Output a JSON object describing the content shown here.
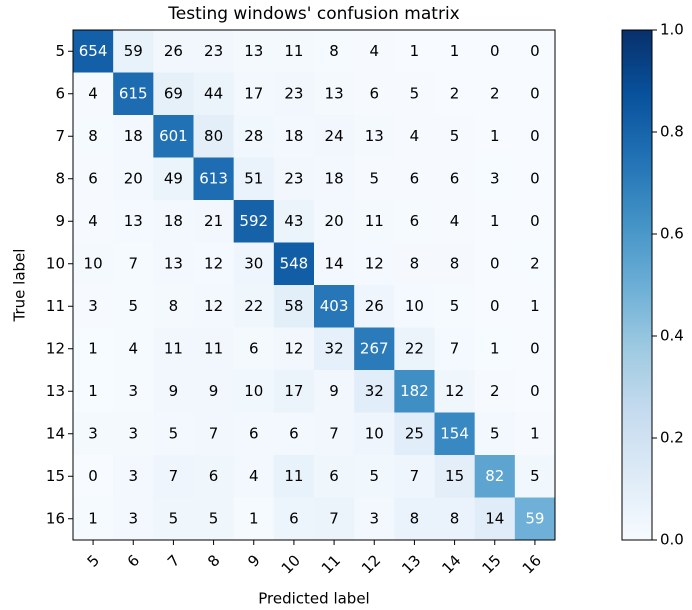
{
  "chart_data": {
    "type": "heatmap",
    "title": "Testing windows' confusion matrix",
    "xlabel": "Predicted label",
    "ylabel": "True label",
    "x_categories": [
      5,
      6,
      7,
      8,
      9,
      10,
      11,
      12,
      13,
      14,
      15,
      16
    ],
    "y_categories": [
      5,
      6,
      7,
      8,
      9,
      10,
      11,
      12,
      13,
      14,
      15,
      16
    ],
    "values": [
      [
        654,
        59,
        26,
        23,
        13,
        11,
        8,
        4,
        1,
        1,
        0,
        0
      ],
      [
        4,
        615,
        69,
        44,
        17,
        23,
        13,
        6,
        5,
        2,
        2,
        0
      ],
      [
        8,
        18,
        601,
        80,
        28,
        18,
        24,
        13,
        4,
        5,
        1,
        0
      ],
      [
        6,
        20,
        49,
        613,
        51,
        23,
        18,
        5,
        6,
        6,
        3,
        0
      ],
      [
        4,
        13,
        18,
        21,
        592,
        43,
        20,
        11,
        6,
        4,
        1,
        0
      ],
      [
        10,
        7,
        13,
        12,
        30,
        548,
        14,
        12,
        8,
        8,
        0,
        2
      ],
      [
        3,
        5,
        8,
        12,
        22,
        58,
        403,
        26,
        10,
        5,
        0,
        1
      ],
      [
        1,
        4,
        11,
        11,
        6,
        12,
        32,
        267,
        22,
        7,
        1,
        0
      ],
      [
        1,
        3,
        9,
        9,
        10,
        17,
        9,
        32,
        182,
        12,
        2,
        0
      ],
      [
        3,
        3,
        5,
        7,
        6,
        6,
        7,
        10,
        25,
        154,
        5,
        1
      ],
      [
        0,
        3,
        7,
        6,
        4,
        11,
        6,
        5,
        7,
        15,
        82,
        5
      ],
      [
        1,
        3,
        5,
        5,
        1,
        6,
        7,
        3,
        8,
        8,
        14,
        59
      ]
    ],
    "normalize": "row",
    "colormap": "Blues",
    "clim": [
      0,
      1
    ],
    "cticks": [
      {
        "value": 0,
        "label": "0.0"
      },
      0.2,
      0.4,
      0.6,
      0.8,
      {
        "value": 1,
        "label": "1.0"
      }
    ]
  }
}
